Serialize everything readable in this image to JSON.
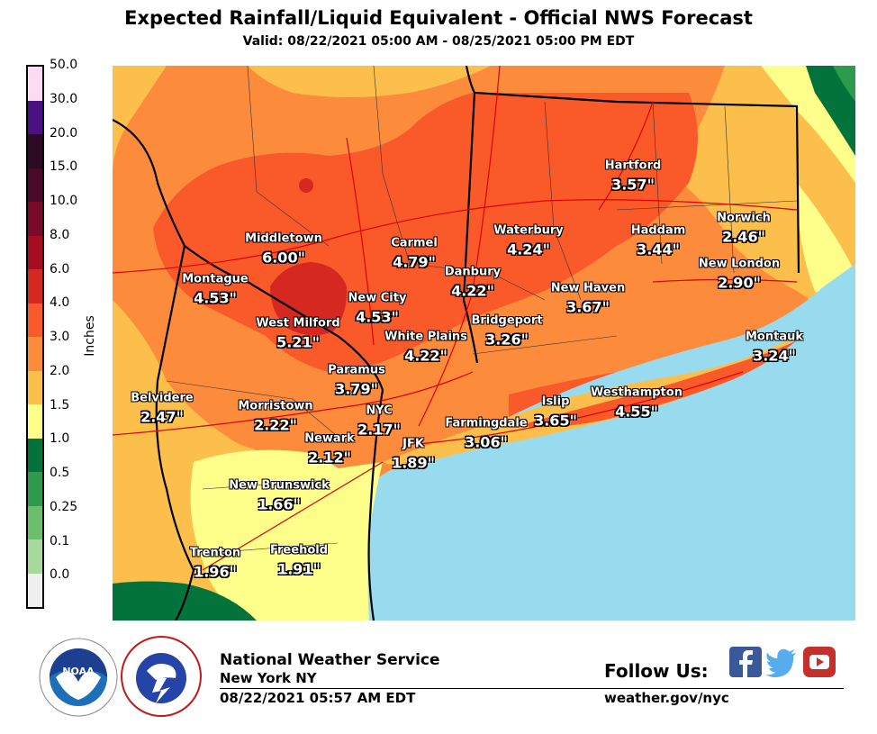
{
  "header": {
    "title": "Expected Rainfall/Liquid Equivalent - Official NWS Forecast",
    "valid": "Valid: 08/22/2021 05:00 AM - 08/25/2021 05:00 PM EDT"
  },
  "legend": {
    "units": "Inches",
    "ticks": [
      "50.0",
      "30.0",
      "20.0",
      "15.0",
      "10.0",
      "8.0",
      "6.0",
      "4.0",
      "3.0",
      "2.0",
      "1.5",
      "1.0",
      "0.5",
      "0.25",
      "0.1",
      "0.0"
    ],
    "colors": [
      "#ffdaf2",
      "#4b1082",
      "#2c0a23",
      "#4c0a2a",
      "#7a0a2c",
      "#a80c21",
      "#d42820",
      "#fa5a2a",
      "#fc8c3c",
      "#fdbf4c",
      "#feff8b",
      "#03733b",
      "#2e9a4e",
      "#6bbe6c",
      "#a8d99c",
      "#f0f0f0"
    ]
  },
  "map": {
    "ocean_color": "#99dbee",
    "stations": [
      {
        "name": "Middletown",
        "value": "6.00\""
      },
      {
        "name": "Carmel",
        "value": "4.79\""
      },
      {
        "name": "Waterbury",
        "value": "4.24\""
      },
      {
        "name": "Hartford",
        "value": "3.57\""
      },
      {
        "name": "Haddam",
        "value": "3.44\""
      },
      {
        "name": "Norwich",
        "value": "2.46\""
      },
      {
        "name": "New London",
        "value": "2.90\""
      },
      {
        "name": "Montague",
        "value": "4.53\""
      },
      {
        "name": "Danbury",
        "value": "4.22\""
      },
      {
        "name": "New City",
        "value": "4.53\""
      },
      {
        "name": "New Haven",
        "value": "3.67\""
      },
      {
        "name": "West Milford",
        "value": "5.21\""
      },
      {
        "name": "White Plains",
        "value": "4.22\""
      },
      {
        "name": "Bridgeport",
        "value": "3.26\""
      },
      {
        "name": "Montauk",
        "value": "3.24\""
      },
      {
        "name": "Paramus",
        "value": "3.79\""
      },
      {
        "name": "Belvidere",
        "value": "2.47\""
      },
      {
        "name": "Morristown",
        "value": "2.22\""
      },
      {
        "name": "NYC",
        "value": "2.17\""
      },
      {
        "name": "Islip",
        "value": "3.65\""
      },
      {
        "name": "Westhampton",
        "value": "4.55\""
      },
      {
        "name": "Farmingdale",
        "value": "3.06\""
      },
      {
        "name": "Newark",
        "value": "2.12\""
      },
      {
        "name": "JFK",
        "value": "1.89\""
      },
      {
        "name": "New Brunswick",
        "value": "1.66\""
      },
      {
        "name": "Trenton",
        "value": "1.96\""
      },
      {
        "name": "Freehold",
        "value": "1.91\""
      }
    ]
  },
  "footer": {
    "agency": "National Weather Service",
    "office": "New York NY",
    "issued": "08/22/2021 05:57 AM EDT",
    "follow_label": "Follow Us:",
    "website": "weather.gov/nyc",
    "social_icons": [
      "facebook-icon",
      "twitter-icon",
      "youtube-icon"
    ]
  }
}
